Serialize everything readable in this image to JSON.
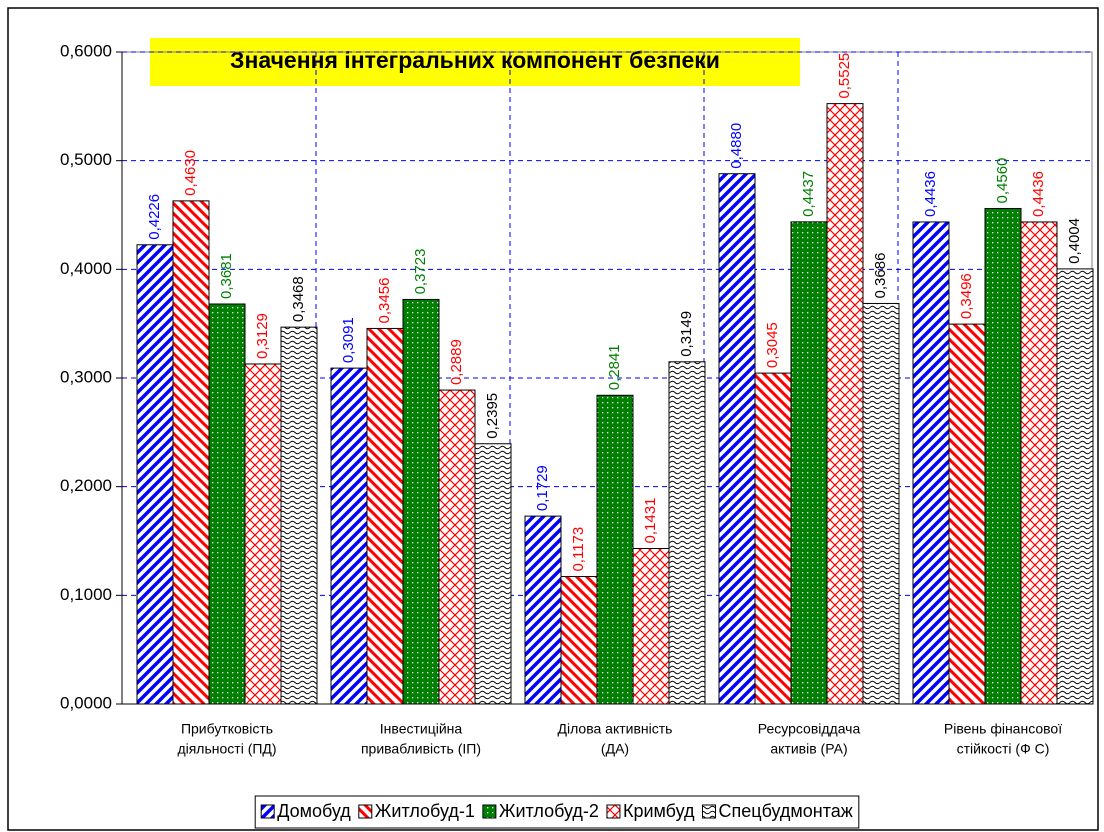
{
  "chart_data": {
    "type": "bar",
    "title": "Значення інтегральних компонент безпеки",
    "categories": [
      [
        "Прибутковість",
        "діяльності (ПД)"
      ],
      [
        "Інвестиційна",
        "привабливість (ІП)"
      ],
      [
        "Ділова активність",
        "(ДА)"
      ],
      [
        "Ресурсовіддача",
        "активів  (РА)"
      ],
      [
        "Рівень фінансової",
        "стійкості  (Ф С)"
      ]
    ],
    "series": [
      {
        "name": "Домобуд",
        "color": "#0000ff",
        "pattern": "diagonal-up",
        "values": [
          0.4226,
          0.3091,
          0.1729,
          0.488,
          0.4436
        ],
        "value_labels": [
          "0,4226",
          "0,3091",
          "0,1729",
          "0,4880",
          "0,4436"
        ]
      },
      {
        "name": "Житлобуд-1",
        "color": "#ff0000",
        "pattern": "diagonal-down",
        "values": [
          0.463,
          0.3456,
          0.1173,
          0.3045,
          0.3496
        ],
        "value_labels": [
          "0,4630",
          "0,3456",
          "0,1173",
          "0,3045",
          "0,3496"
        ]
      },
      {
        "name": "Житлобуд-2",
        "color": "#008000",
        "pattern": "dots",
        "values": [
          0.3681,
          0.3723,
          0.2841,
          0.4437,
          0.456
        ],
        "value_labels": [
          "0,3681",
          "0,3723",
          "0,2841",
          "0,4437",
          "0,4560"
        ]
      },
      {
        "name": "Кримбуд",
        "color": "#ff0000",
        "pattern": "cross",
        "values": [
          0.3129,
          0.2889,
          0.1431,
          0.5525,
          0.4436
        ],
        "value_labels": [
          "0,3129",
          "0,2889",
          "0,1431",
          "0,5525",
          "0,4436"
        ]
      },
      {
        "name": "Спецбудмонтаж",
        "color": "#000000",
        "pattern": "wave",
        "values": [
          0.3468,
          0.2395,
          0.3149,
          0.3686,
          0.4004
        ],
        "value_labels": [
          "0,3468",
          "0,2395",
          "0,3149",
          "0,3686",
          "0,4004"
        ]
      }
    ],
    "ylim": [
      0,
      0.6
    ],
    "yticks": [
      {
        "value": 0,
        "label": "0,0000"
      },
      {
        "value": 0.1,
        "label": "0,1000"
      },
      {
        "value": 0.2,
        "label": "0,2000"
      },
      {
        "value": 0.3,
        "label": "0,3000"
      },
      {
        "value": 0.4,
        "label": "0,4000"
      },
      {
        "value": 0.5,
        "label": "0,5000"
      },
      {
        "value": 0.6,
        "label": "0,6000"
      }
    ],
    "grid": true,
    "legend": "bottom"
  }
}
